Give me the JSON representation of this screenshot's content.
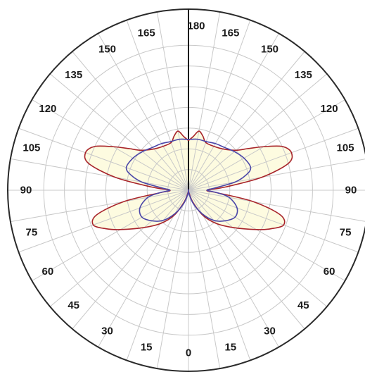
{
  "chart_data": {
    "type": "polar",
    "title": "",
    "angle_unit": "degrees",
    "zero_direction": "bottom",
    "angle_tick_labels": [
      {
        "label": "0",
        "angle": 0
      },
      {
        "label": "15",
        "angle": 15
      },
      {
        "label": "30",
        "angle": 30
      },
      {
        "label": "45",
        "angle": 45
      },
      {
        "label": "60",
        "angle": 60
      },
      {
        "label": "75",
        "angle": 75
      },
      {
        "label": "90",
        "angle": 90
      },
      {
        "label": "105",
        "angle": 105
      },
      {
        "label": "120",
        "angle": 120
      },
      {
        "label": "135",
        "angle": 135
      },
      {
        "label": "150",
        "angle": 150
      },
      {
        "label": "165",
        "angle": 165
      },
      {
        "label": "180",
        "angle": 180
      },
      {
        "label": "165",
        "angle": -165
      },
      {
        "label": "150",
        "angle": -150
      },
      {
        "label": "135",
        "angle": -135
      },
      {
        "label": "120",
        "angle": -120
      },
      {
        "label": "105",
        "angle": -105
      },
      {
        "label": "90",
        "angle": -90
      },
      {
        "label": "75",
        "angle": -75
      },
      {
        "label": "60",
        "angle": -60
      },
      {
        "label": "45",
        "angle": -45
      },
      {
        "label": "30",
        "angle": -30
      },
      {
        "label": "15",
        "angle": -15
      }
    ],
    "radial_rings": [
      1,
      2,
      3,
      4,
      5,
      6,
      7
    ],
    "r_max": 7,
    "spoke_step_deg": 10,
    "grid": true,
    "series": [
      {
        "name": "",
        "color": "#a8242a",
        "fill": "#fdfbe0",
        "theta": [
          0,
          10,
          20,
          30,
          40,
          50,
          60,
          65,
          70,
          75,
          80,
          85,
          90,
          95,
          100,
          105,
          110,
          115,
          120,
          125,
          130,
          140,
          150,
          160,
          165,
          170,
          175,
          180
        ],
        "r": [
          0,
          0.1,
          0.6,
          1.4,
          2.1,
          2.8,
          3.8,
          4.4,
          4.9,
          4.6,
          3.2,
          1.4,
          0.9,
          1.8,
          3.6,
          5.0,
          5.3,
          5.0,
          4.2,
          3.5,
          3.0,
          2.6,
          2.45,
          2.45,
          2.7,
          2.9,
          2.6,
          2.4
        ]
      },
      {
        "name": "",
        "color": "#4a46a8",
        "theta": [
          0,
          10,
          20,
          30,
          40,
          50,
          60,
          70,
          80,
          85,
          90,
          95,
          100,
          105,
          110,
          120,
          130,
          140,
          150,
          160,
          170,
          180
        ],
        "r": [
          0,
          0.2,
          0.7,
          1.3,
          1.9,
          2.3,
          2.6,
          2.5,
          2.0,
          1.4,
          0.9,
          1.3,
          2.3,
          2.9,
          3.2,
          3.1,
          2.9,
          2.7,
          2.6,
          2.5,
          2.5,
          2.45
        ]
      }
    ]
  }
}
